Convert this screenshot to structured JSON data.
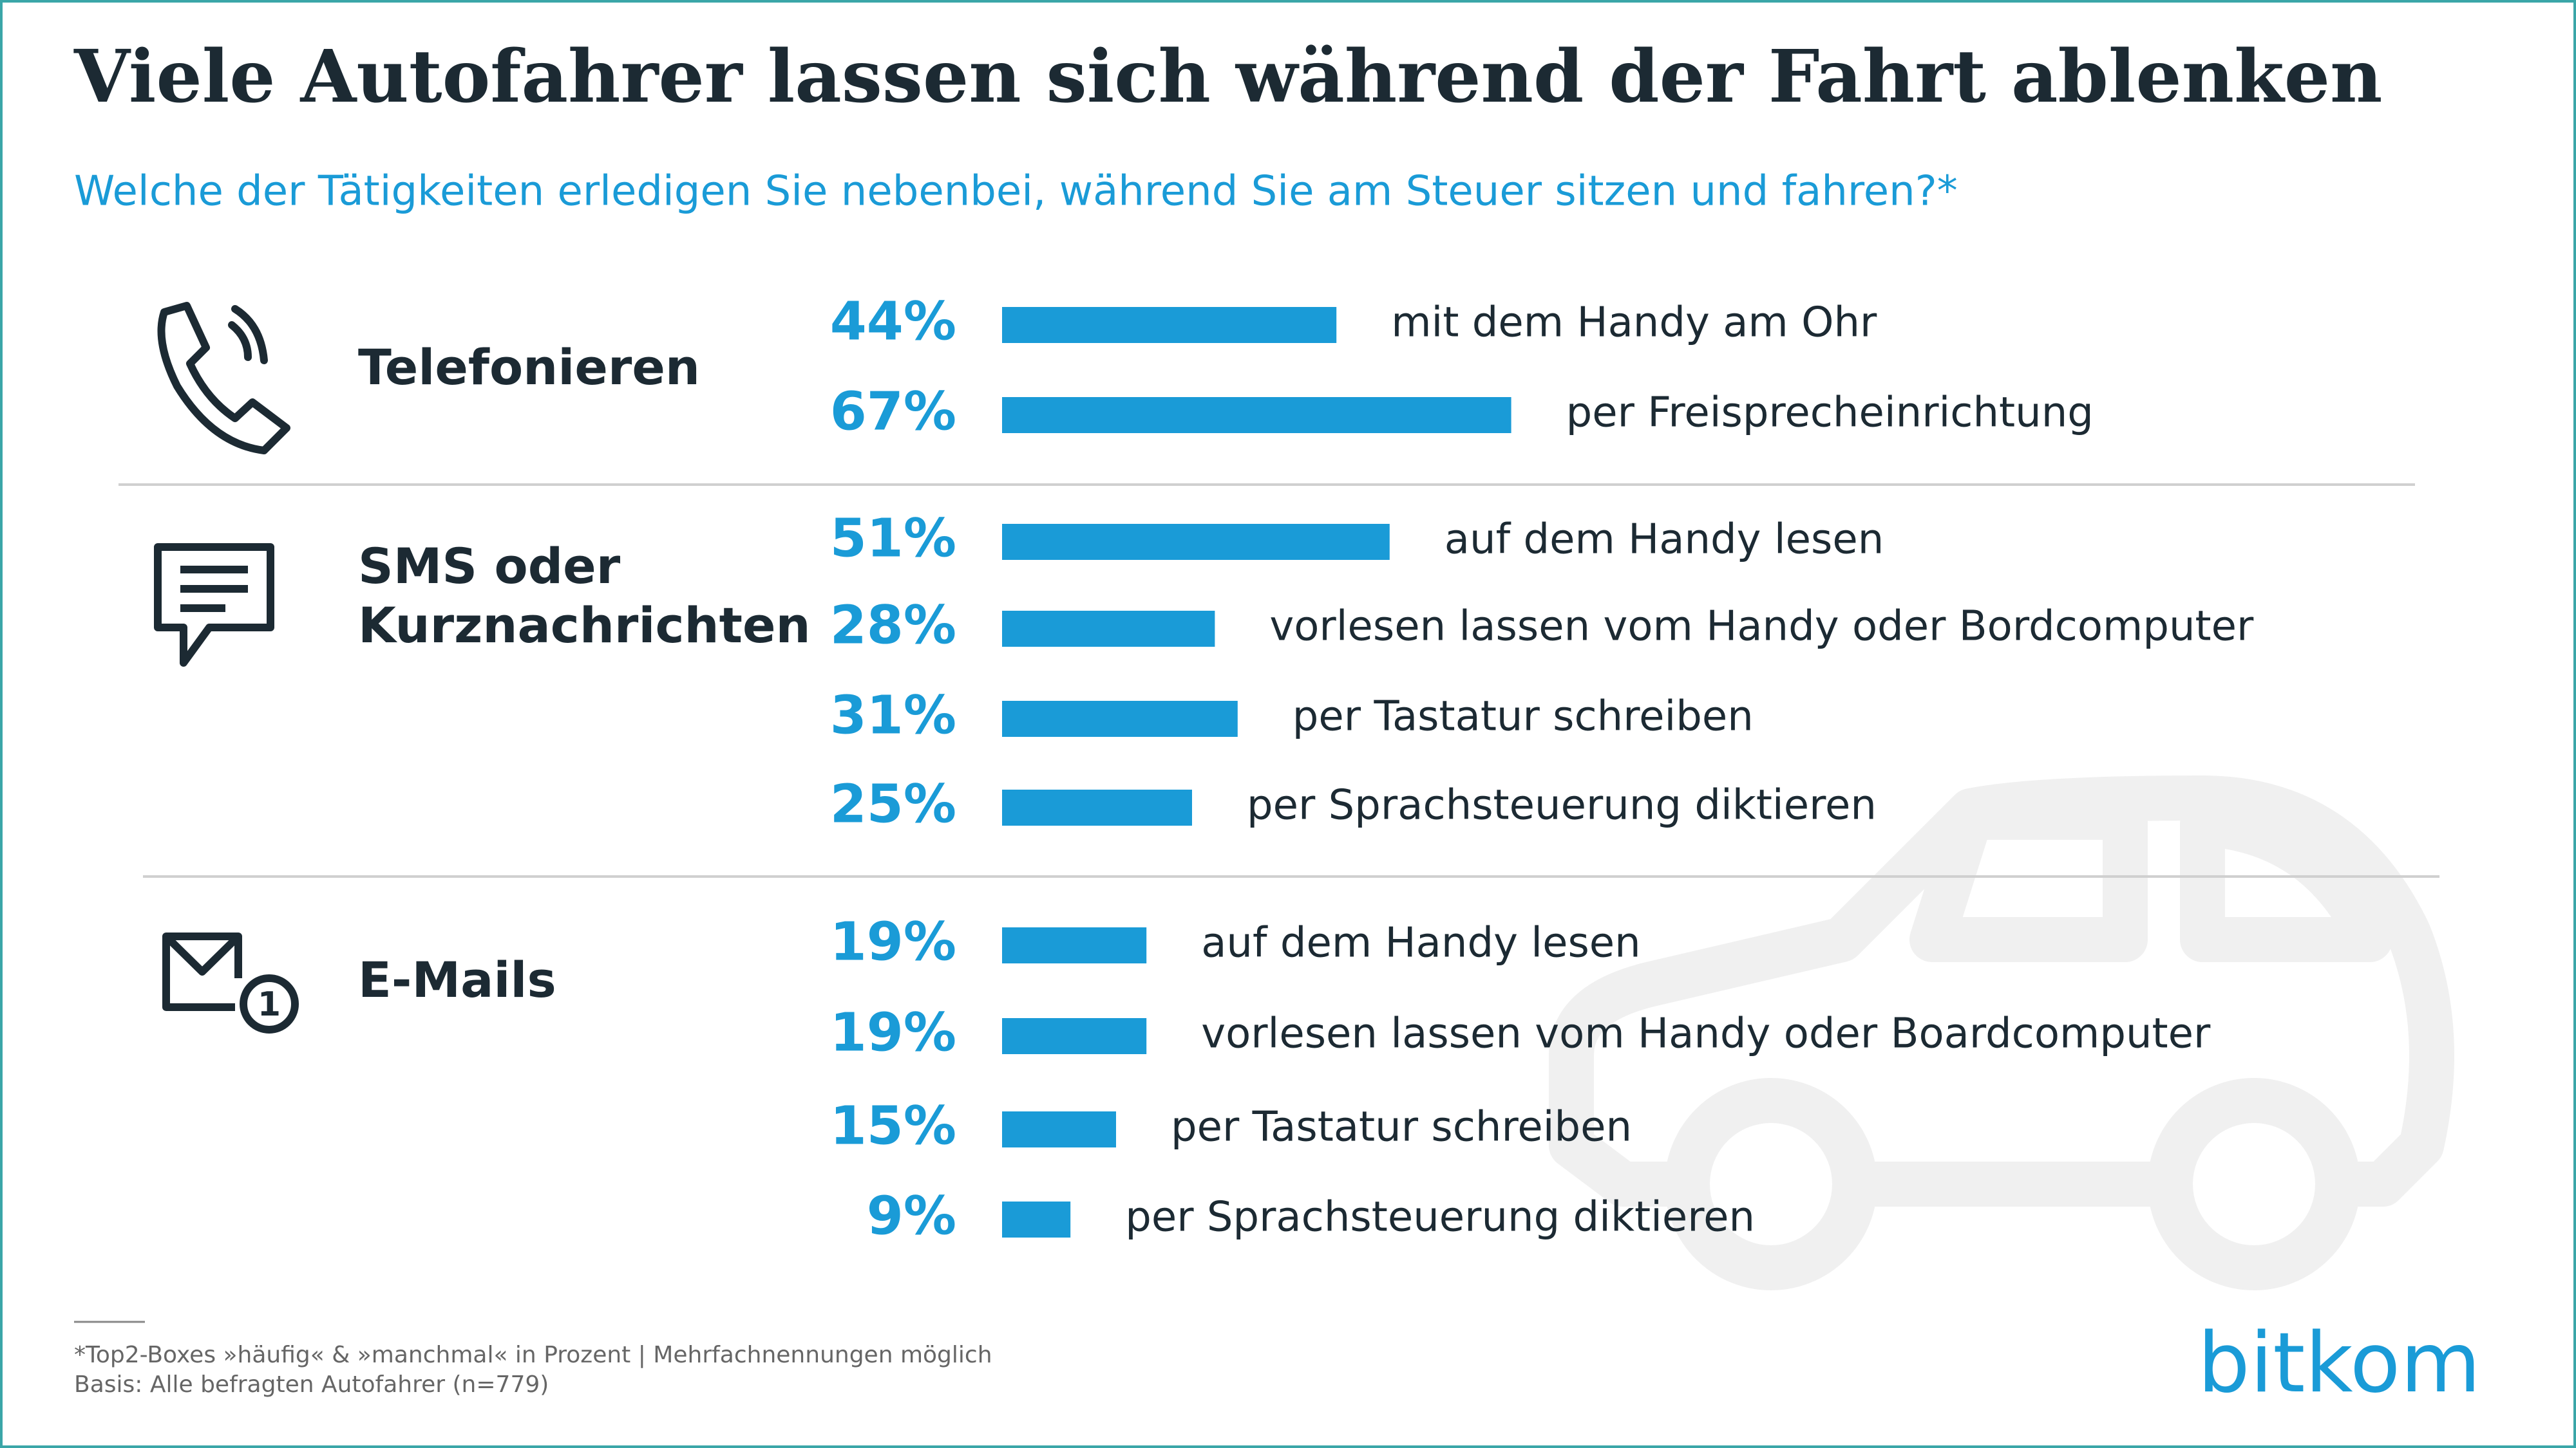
{
  "chart_data": {
    "type": "bar",
    "title": "Viele Autofahrer lassen sich während der Fahrt ablenken",
    "subtitle": "Welche der Tätigkeiten erledigen Sie nebenbei, während Sie am Steuer sitzen und fahren?*",
    "color": "#1a9bd7",
    "groups": [
      {
        "name": "Telefonieren",
        "categories": [
          "mit dem Handy am Ohr",
          "per Freisprecheinrichtung"
        ],
        "values": [
          44,
          67
        ],
        "value_labels": [
          "44%",
          "67%"
        ]
      },
      {
        "name": "SMS oder Kurznachrichten",
        "categories": [
          "auf dem Handy lesen",
          "vorlesen lassen vom Handy oder Bordcomputer",
          "per Tastatur schreiben",
          "per Sprachsteuerung diktieren"
        ],
        "values": [
          51,
          28,
          31,
          25
        ],
        "value_labels": [
          "51%",
          "28%",
          "31%",
          "25%"
        ]
      },
      {
        "name": "E-Mails",
        "categories": [
          "auf dem Handy lesen",
          "vorlesen lassen vom Handy oder Boardcomputer",
          "per Tastatur schreiben",
          "per Sprachsteuerung diktieren"
        ],
        "values": [
          19,
          19,
          15,
          9
        ],
        "value_labels": [
          "19%",
          "19%",
          "15%",
          "9%"
        ]
      }
    ]
  },
  "footnotes": [
    "*Top2-Boxes »häufig« & »manchmal« in Prozent | Mehrfachnennungen möglich",
    "Basis: Alle befragten Autofahrer (n=779)"
  ],
  "logo": "bitkom"
}
